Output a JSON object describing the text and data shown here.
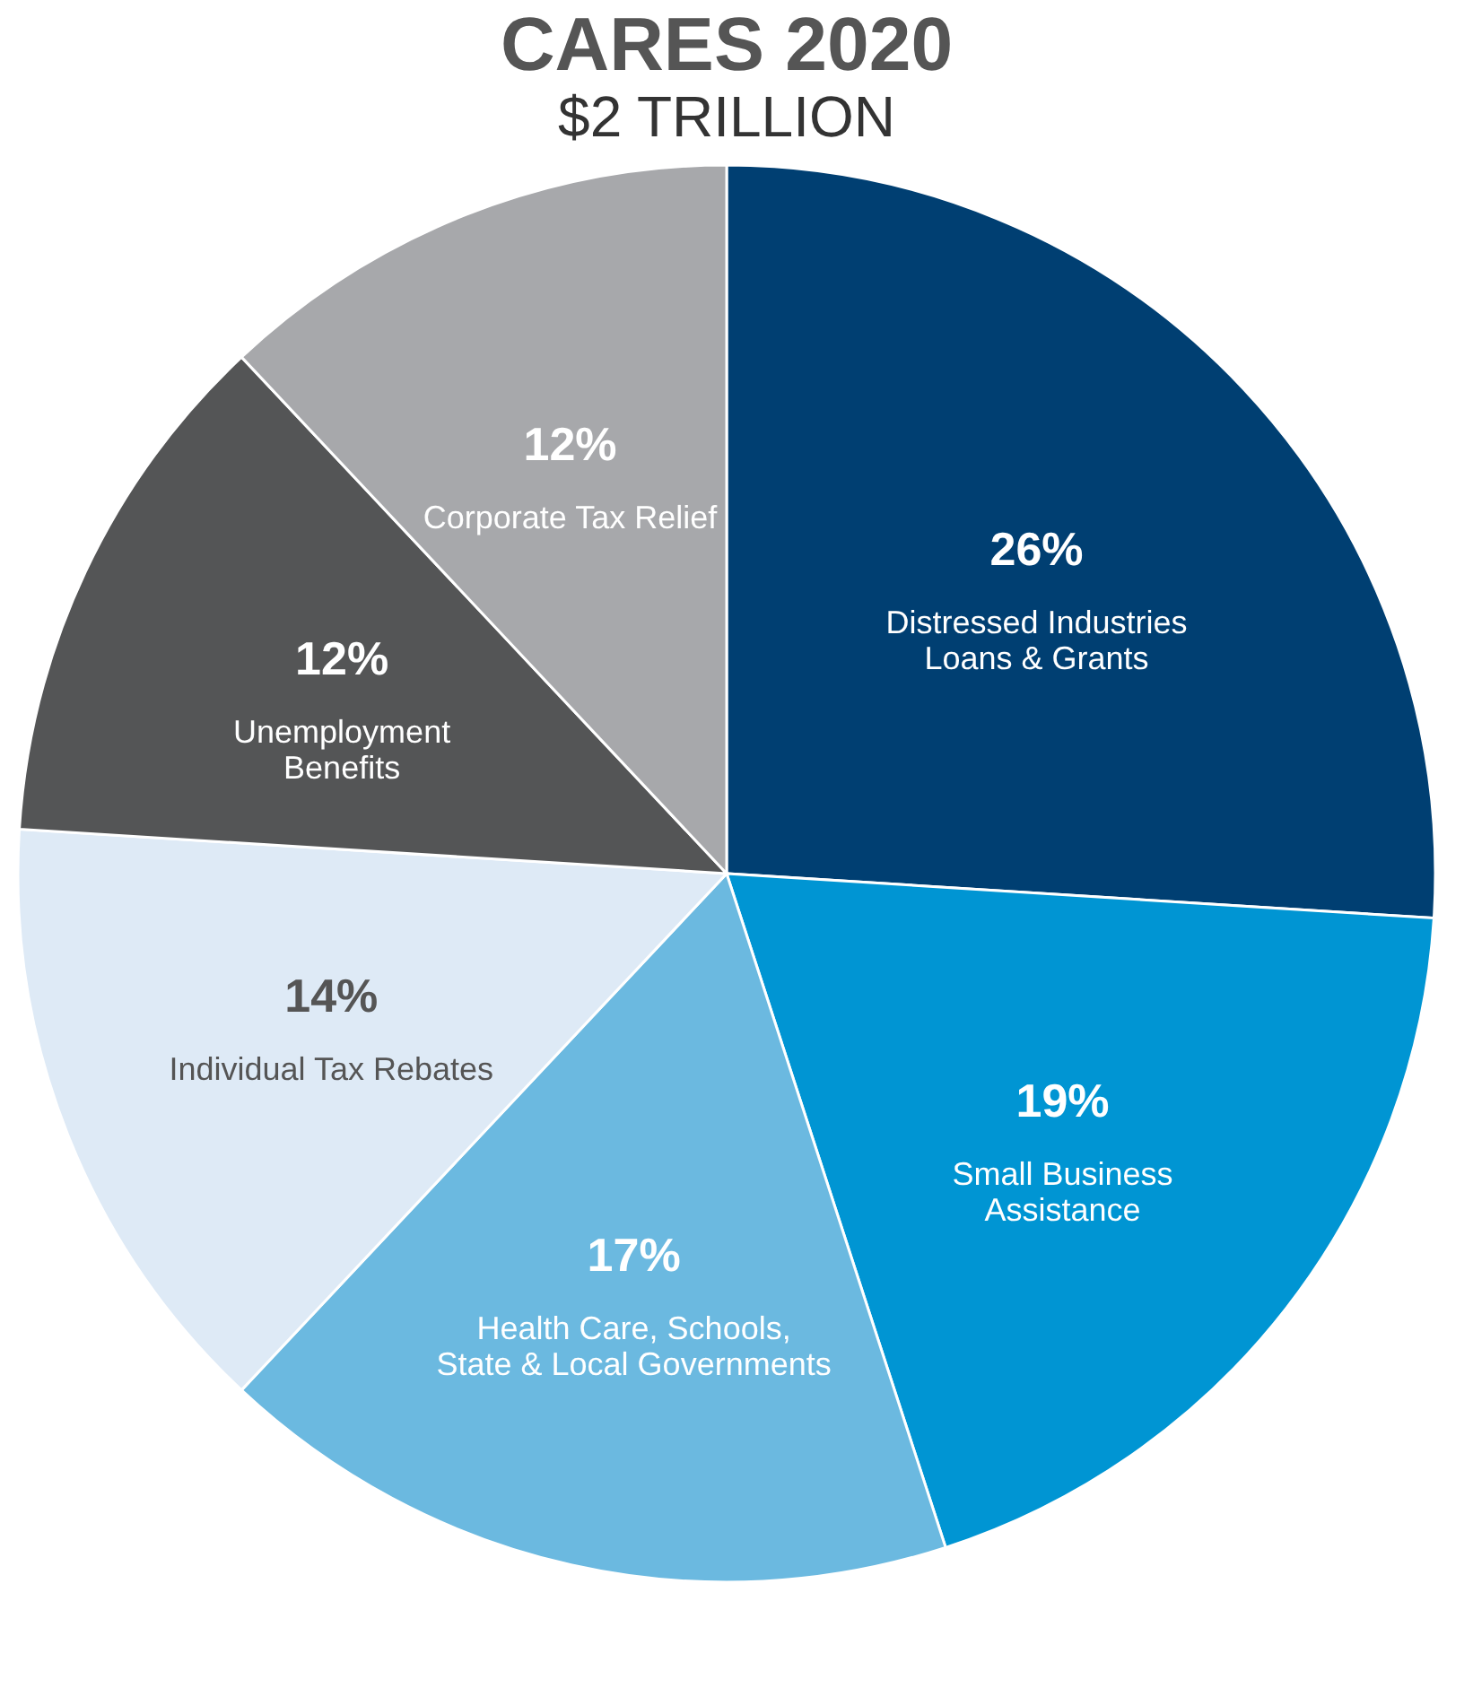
{
  "chart_data": {
    "type": "pie",
    "title": "CARES 2020",
    "subtitle": "$2 TRILLION",
    "categories": [
      "Distressed Industries\nLoans & Grants",
      "Small Business\nAssistance",
      "Health Care, Schools,\nState & Local Governments",
      "Individual Tax Rebates",
      "Unemployment\nBenefits",
      "Corporate Tax Relief"
    ],
    "values": [
      26,
      19,
      17,
      14,
      12,
      12
    ],
    "value_labels": [
      "26%",
      "19%",
      "17%",
      "14%",
      "12%",
      "12%"
    ],
    "colors": [
      "#003f72",
      "#0095d3",
      "#6bb9e0",
      "#deeaf6",
      "#545556",
      "#a7a8ab"
    ],
    "legend": false
  }
}
